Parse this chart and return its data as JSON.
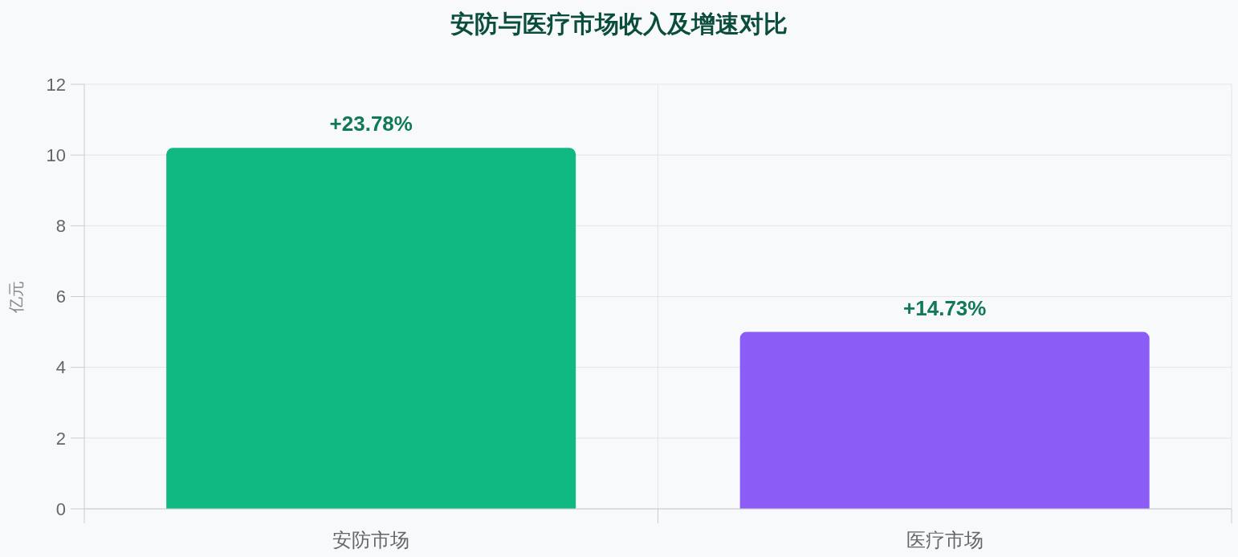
{
  "chart_data": {
    "type": "bar",
    "title": "安防与医疗市场收入及增速对比",
    "ylabel": "亿元",
    "categories": [
      "安防市场",
      "医疗市场"
    ],
    "values": [
      10.2,
      5.0
    ],
    "colors": [
      "#10b981",
      "#8b5cf6"
    ],
    "annotations": [
      {
        "text": "+23.78%",
        "x": "安防市场",
        "y": 10.2
      },
      {
        "text": "+14.73%",
        "x": "医疗市场",
        "y": 5.0
      }
    ],
    "ylim": [
      0,
      12
    ],
    "yticks": [
      0,
      2,
      4,
      6,
      8,
      10,
      12
    ],
    "grid": true
  }
}
